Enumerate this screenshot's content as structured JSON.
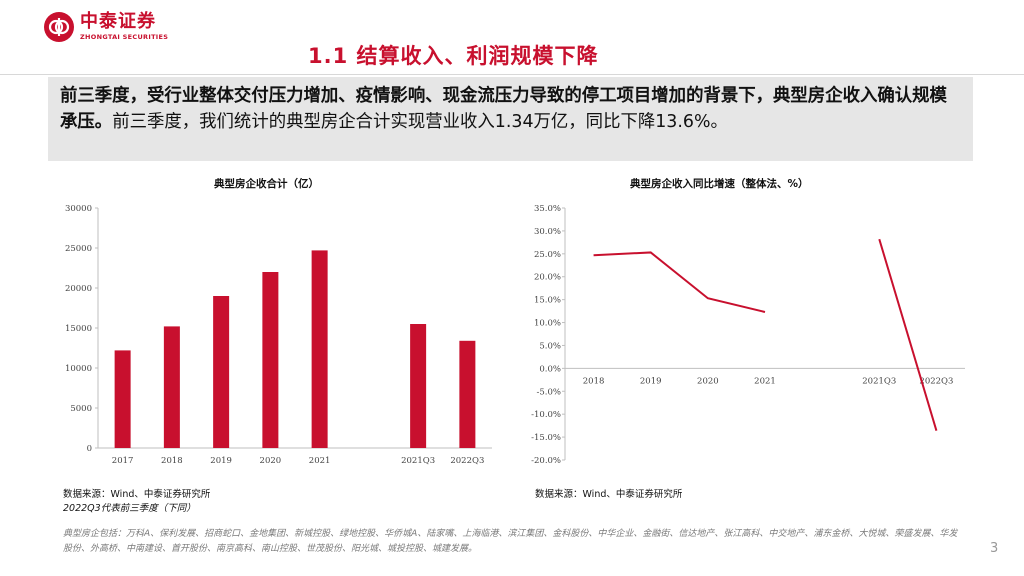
{
  "header": {
    "logo_cn": "中泰证券",
    "logo_en": "ZHONGTAI SECURITIES",
    "title": "1.1 结算收入、利润规模下降"
  },
  "summary": {
    "bold_text": "前三季度，受行业整体交付压力增加、疫情影响、现金流压力导致的停工项目增加的背景下，典型房企收入确认规模承压。",
    "normal_text": "前三季度，我们统计的典型房企合计实现营业收入1.34万亿，同比下降13.6%。"
  },
  "chart_data": [
    {
      "type": "bar",
      "title": "典型房企收合计（亿）",
      "categories": [
        "2017",
        "2018",
        "2019",
        "2020",
        "2021",
        "",
        "2021Q3",
        "2022Q3"
      ],
      "values": [
        12200,
        15200,
        19000,
        22000,
        24700,
        null,
        15500,
        13400
      ],
      "ylim": [
        0,
        30000
      ],
      "yticks": [
        "0",
        "5000",
        "10000",
        "15000",
        "20000",
        "25000",
        "30000"
      ],
      "color": "#c8102e",
      "grid": false
    },
    {
      "type": "line",
      "title": "典型房企收入同比增速（整体法、%）",
      "categories": [
        "2018",
        "2019",
        "2020",
        "2021",
        "",
        "2021Q3",
        "2022Q3"
      ],
      "values": [
        24.7,
        25.3,
        15.3,
        12.3,
        null,
        28.2,
        -13.6
      ],
      "ylim": [
        -20,
        35
      ],
      "yticks": [
        "-20.0%",
        "-15.0%",
        "-10.0%",
        "-5.0%",
        "0.0%",
        "5.0%",
        "10.0%",
        "15.0%",
        "20.0%",
        "25.0%",
        "30.0%",
        "35.0%"
      ],
      "color": "#c8102e",
      "grid": false
    }
  ],
  "sources": {
    "left": "数据来源：Wind、中泰证券研究所",
    "left_note": "2022Q3代表前三季度（下同）",
    "right": "数据来源：Wind、中泰证券研究所"
  },
  "footnote": "典型房企包括：万科A、保利发展、招商蛇口、金地集团、新城控股、绿地控股、华侨城A、陆家嘴、上海临港、滨江集团、金科股份、中华企业、金融街、信达地产、张江高科、中交地产、浦东金桥、大悦城、荣盛发展、华发股份、外高桥、中南建设、首开股份、南京高科、南山控股、世茂股份、阳光城、城投控股、城建发展。",
  "page_number": "3"
}
